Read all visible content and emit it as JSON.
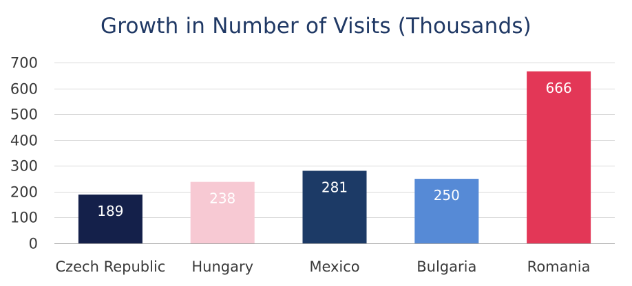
{
  "chart_data": {
    "type": "bar",
    "title": "Growth in Number of Visits (Thousands)",
    "xlabel": "",
    "ylabel": "",
    "ylim": [
      0,
      700
    ],
    "yticks": [
      0,
      100,
      200,
      300,
      400,
      500,
      600,
      700
    ],
    "grid": true,
    "legend": "none",
    "categories": [
      "Czech Republic",
      "Hungary",
      "Mexico",
      "Bulgaria",
      "Romania"
    ],
    "values": [
      189,
      238,
      281,
      250,
      666
    ],
    "data_labels": [
      "189",
      "238",
      "281",
      "250",
      "666"
    ],
    "bar_colors": [
      "#14204a",
      "#f7c9d3",
      "#1c3a66",
      "#568ad6",
      "#e33757"
    ],
    "label_colors": [
      "#ffffff",
      "#ffffff",
      "#ffffff",
      "#ffffff",
      "#ffffff"
    ]
  },
  "colors": {
    "title": "#1f3864",
    "grid": "#d9d9d9",
    "axis": "#a6a6a6",
    "tick_text": "#3a3a3a"
  }
}
